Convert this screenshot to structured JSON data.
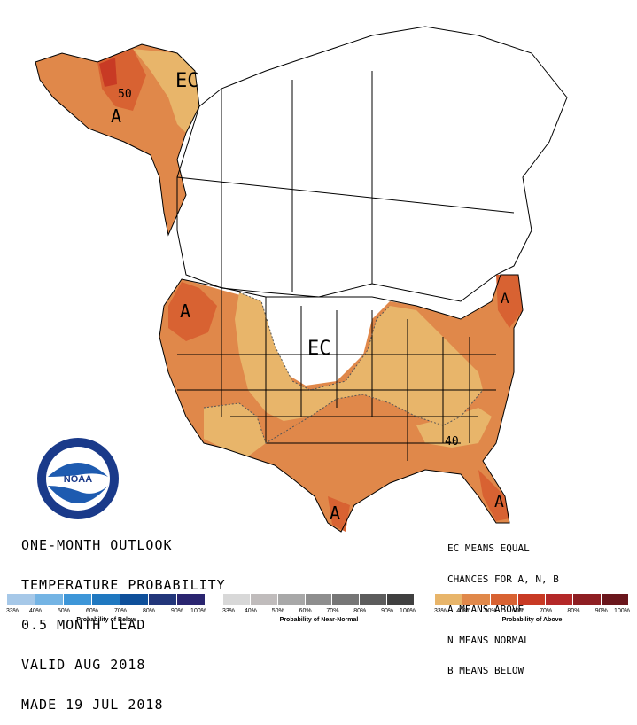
{
  "title": {
    "lines": [
      "ONE-MONTH OUTLOOK",
      "TEMPERATURE PROBABILITY",
      "0.5 MONTH LEAD",
      "VALID AUG 2018",
      "MADE 19 JUL 2018"
    ]
  },
  "key": {
    "lines": [
      "EC MEANS EQUAL",
      "CHANCES FOR A, N, B",
      "A MEANS ABOVE",
      "N MEANS NORMAL",
      "B MEANS BELOW"
    ]
  },
  "map_labels": {
    "ec_alaska": "EC",
    "ec_conus": "EC",
    "a_alaska": "A",
    "a_northwest": "A",
    "a_texas": "A",
    "a_florida": "A",
    "a_northeast": "A",
    "contour_50": "50",
    "contour_40": "40"
  },
  "logo": {
    "text": "NOAA"
  },
  "legend": {
    "below": {
      "label": "Probability of Below",
      "ticks": [
        "33%",
        "40%",
        "50%",
        "60%",
        "70%",
        "80%",
        "90%",
        "100%"
      ],
      "colors": [
        "#a6c8e8",
        "#74b4e4",
        "#3d96d8",
        "#1f78c0",
        "#0e4f9a",
        "#22367a",
        "#2a2570"
      ]
    },
    "normal": {
      "label": "Probability of Near-Normal",
      "ticks": [
        "33%",
        "40%",
        "50%",
        "60%",
        "70%",
        "80%",
        "90%",
        "100%"
      ],
      "colors": [
        "#d8d8d8",
        "#c0bcbc",
        "#a8a8a8",
        "#8e8e8e",
        "#767676",
        "#5c5c5c",
        "#404040"
      ]
    },
    "above": {
      "label": "Probability of Above",
      "ticks": [
        "33%",
        "40%",
        "50%",
        "60%",
        "70%",
        "80%",
        "90%",
        "100%"
      ],
      "colors": [
        "#e8b56a",
        "#e0884a",
        "#d86232",
        "#c83a24",
        "#b42828",
        "#8e1e22",
        "#6a161c"
      ]
    }
  },
  "colors": {
    "above_33_40": "#e8b56a",
    "above_40_50": "#e0884a",
    "above_50_60": "#d86232",
    "above_60_70": "#c83a24",
    "border": "#000000"
  }
}
